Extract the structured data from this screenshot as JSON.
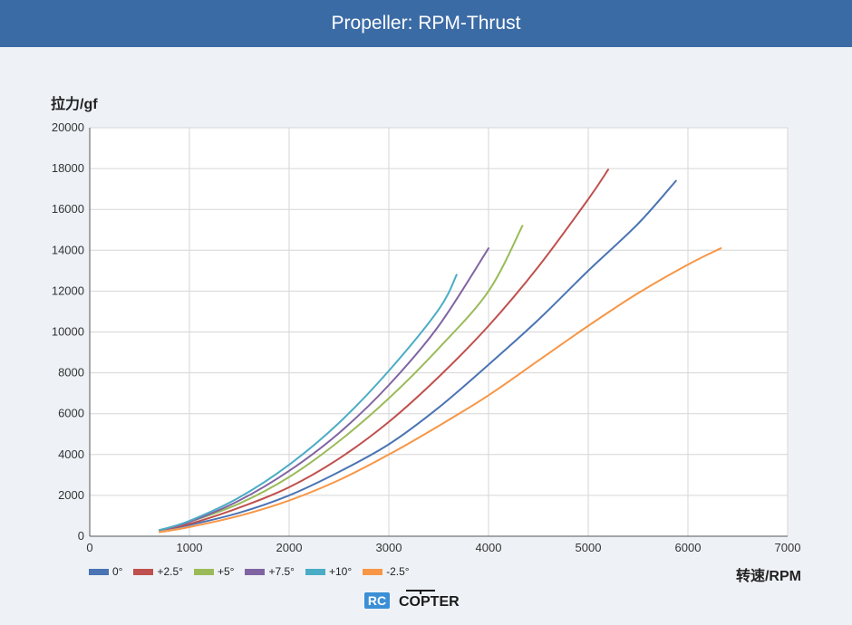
{
  "header": {
    "title": "Propeller: RPM-Thrust"
  },
  "chart_data": {
    "type": "line",
    "ylabel": "拉力/gf",
    "xlabel": "转速/RPM",
    "xlim": [
      0,
      7000
    ],
    "ylim": [
      0,
      20000
    ],
    "x_ticks": [
      "0",
      "1000",
      "2000",
      "3000",
      "4000",
      "5000",
      "6000",
      "7000"
    ],
    "y_ticks": [
      "0",
      "2000",
      "4000",
      "6000",
      "8000",
      "10000",
      "12000",
      "14000",
      "16000",
      "18000",
      "20000"
    ],
    "grid": true,
    "legend_position": "bottom-left",
    "series": [
      {
        "name": "0°",
        "color": "#4a74b3",
        "x": [
          700,
          1000,
          1500,
          2000,
          2500,
          3000,
          3500,
          4000,
          4500,
          5000,
          5500,
          5880
        ],
        "y": [
          300,
          550,
          1150,
          2000,
          3150,
          4500,
          6300,
          8400,
          10600,
          13000,
          15300,
          17400
        ]
      },
      {
        "name": "+2.5°",
        "color": "#c0504d",
        "x": [
          700,
          1000,
          1500,
          2000,
          2500,
          3000,
          3500,
          4000,
          4500,
          5000,
          5200
        ],
        "y": [
          300,
          600,
          1400,
          2400,
          3800,
          5600,
          7800,
          10300,
          13200,
          16500,
          17950
        ]
      },
      {
        "name": "+5°",
        "color": "#9bbb59",
        "x": [
          700,
          1000,
          1500,
          2000,
          2500,
          3000,
          3500,
          4000,
          4340
        ],
        "y": [
          300,
          700,
          1600,
          2900,
          4650,
          6750,
          9200,
          12000,
          15200
        ]
      },
      {
        "name": "+7.5°",
        "color": "#8064a2",
        "x": [
          700,
          1000,
          1500,
          2000,
          2500,
          3000,
          3500,
          4000
        ],
        "y": [
          300,
          700,
          1750,
          3200,
          5050,
          7400,
          10300,
          14100
        ]
      },
      {
        "name": "+10°",
        "color": "#4bacc6",
        "x": [
          700,
          1000,
          1500,
          2000,
          2500,
          3000,
          3500,
          3680
        ],
        "y": [
          300,
          750,
          1900,
          3500,
          5550,
          8100,
          11100,
          12800
        ]
      },
      {
        "name": "-2.5°",
        "color": "#f79646",
        "x": [
          700,
          1000,
          1500,
          2000,
          2500,
          3000,
          3500,
          4000,
          4500,
          5000,
          5500,
          6000,
          6330
        ],
        "y": [
          200,
          450,
          1000,
          1750,
          2750,
          4000,
          5400,
          6900,
          8600,
          10300,
          11900,
          13300,
          14100
        ]
      }
    ]
  },
  "logo": {
    "text_a": "RC",
    "text_b": "COPTER"
  }
}
